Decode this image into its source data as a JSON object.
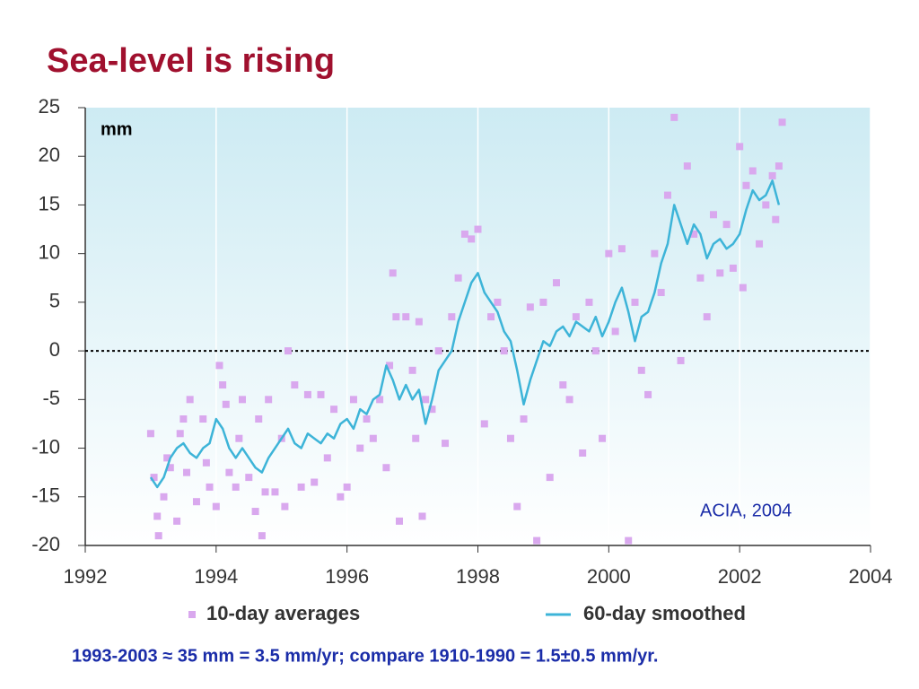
{
  "slide_title": "Sea-level is rising",
  "footnote": "1993-2003 ≈ 35 mm = 3.5 mm/yr;  compare 1910-1990 = 1.5±0.5 mm/yr.",
  "chart_data": {
    "type": "line",
    "ylabel": "mm",
    "annotation": "ACIA, 2004",
    "xlim": [
      1992,
      2004
    ],
    "xticks": [
      1992,
      1994,
      1996,
      1998,
      2000,
      2002,
      2004
    ],
    "ylim": [
      -20,
      25
    ],
    "yticks": [
      -20,
      -15,
      -10,
      -5,
      0,
      5,
      10,
      15,
      20,
      25
    ],
    "zero_line": 0,
    "series": [
      {
        "name": "10-day averages",
        "type": "scatter",
        "color": "#d9a8ee",
        "x": [
          1993.0,
          1993.05,
          1993.1,
          1993.12,
          1993.2,
          1993.25,
          1993.3,
          1993.4,
          1993.45,
          1993.5,
          1993.55,
          1993.6,
          1993.7,
          1993.8,
          1993.85,
          1993.9,
          1994.0,
          1994.05,
          1994.1,
          1994.15,
          1994.2,
          1994.3,
          1994.35,
          1994.4,
          1994.5,
          1994.6,
          1994.65,
          1994.7,
          1994.75,
          1994.8,
          1994.9,
          1995.0,
          1995.05,
          1995.1,
          1995.2,
          1995.3,
          1995.4,
          1995.5,
          1995.6,
          1995.7,
          1995.8,
          1995.9,
          1996.0,
          1996.1,
          1996.2,
          1996.3,
          1996.4,
          1996.5,
          1996.6,
          1996.65,
          1996.7,
          1996.75,
          1996.8,
          1996.9,
          1997.0,
          1997.05,
          1997.1,
          1997.15,
          1997.2,
          1997.3,
          1997.4,
          1997.5,
          1997.6,
          1997.7,
          1997.8,
          1997.9,
          1998.0,
          1998.1,
          1998.2,
          1998.3,
          1998.4,
          1998.5,
          1998.6,
          1998.7,
          1998.8,
          1998.9,
          1999.0,
          1999.1,
          1999.2,
          1999.3,
          1999.4,
          1999.5,
          1999.6,
          1999.7,
          1999.8,
          1999.9,
          2000.0,
          2000.1,
          2000.2,
          2000.3,
          2000.4,
          2000.5,
          2000.6,
          2000.7,
          2000.8,
          2000.9,
          2001.0,
          2001.1,
          2001.2,
          2001.3,
          2001.4,
          2001.5,
          2001.6,
          2001.7,
          2001.8,
          2001.9,
          2002.0,
          2002.05,
          2002.1,
          2002.2,
          2002.3,
          2002.4,
          2002.5,
          2002.55,
          2002.6,
          2002.65
        ],
        "values": [
          -8.5,
          -13,
          -17,
          -19,
          -15,
          -11,
          -12,
          -17.5,
          -8.5,
          -7,
          -12.5,
          -5,
          -15.5,
          -7,
          -11.5,
          -14,
          -16,
          -1.5,
          -3.5,
          -5.5,
          -12.5,
          -14,
          -9,
          -5,
          -13,
          -16.5,
          -7,
          -19,
          -14.5,
          -5,
          -14.5,
          -9,
          -16,
          0,
          -3.5,
          -14,
          -4.5,
          -13.5,
          -4.5,
          -11,
          -6,
          -15,
          -14,
          -5,
          -10,
          -7,
          -9,
          -5,
          -12,
          -1.5,
          8,
          3.5,
          -17.5,
          3.5,
          -2,
          -9,
          3,
          -17,
          -5,
          -6,
          0,
          -9.5,
          3.5,
          7.5,
          12,
          11.5,
          12.5,
          -7.5,
          3.5,
          5,
          0,
          -9,
          -16,
          -7,
          4.5,
          -19.5,
          5,
          -13,
          7,
          -3.5,
          -5,
          3.5,
          -10.5,
          5,
          0,
          -9,
          10,
          2,
          10.5,
          -19.5,
          5,
          -2,
          -4.5,
          10,
          6,
          16,
          24,
          -1,
          19,
          12,
          7.5,
          3.5,
          14,
          8,
          13,
          8.5,
          21,
          6.5,
          17,
          18.5,
          11,
          15,
          18,
          13.5,
          19,
          23.5
        ]
      },
      {
        "name": "60-day smoothed",
        "type": "line",
        "color": "#3db4d8",
        "x": [
          1993.0,
          1993.1,
          1993.2,
          1993.3,
          1993.4,
          1993.5,
          1993.6,
          1993.7,
          1993.8,
          1993.9,
          1994.0,
          1994.1,
          1994.2,
          1994.3,
          1994.4,
          1994.5,
          1994.6,
          1994.7,
          1994.8,
          1994.9,
          1995.0,
          1995.1,
          1995.2,
          1995.3,
          1995.4,
          1995.5,
          1995.6,
          1995.7,
          1995.8,
          1995.9,
          1996.0,
          1996.1,
          1996.2,
          1996.3,
          1996.4,
          1996.5,
          1996.6,
          1996.7,
          1996.8,
          1996.9,
          1997.0,
          1997.1,
          1997.2,
          1997.3,
          1997.4,
          1997.5,
          1997.6,
          1997.7,
          1997.8,
          1997.9,
          1998.0,
          1998.1,
          1998.2,
          1998.3,
          1998.4,
          1998.5,
          1998.6,
          1998.7,
          1998.8,
          1998.9,
          1999.0,
          1999.1,
          1999.2,
          1999.3,
          1999.4,
          1999.5,
          1999.6,
          1999.7,
          1999.8,
          1999.9,
          2000.0,
          2000.1,
          2000.2,
          2000.3,
          2000.4,
          2000.5,
          2000.6,
          2000.7,
          2000.8,
          2000.9,
          2001.0,
          2001.1,
          2001.2,
          2001.3,
          2001.4,
          2001.5,
          2001.6,
          2001.7,
          2001.8,
          2001.9,
          2002.0,
          2002.1,
          2002.2,
          2002.3,
          2002.4,
          2002.5,
          2002.6
        ],
        "values": [
          -13,
          -14,
          -13,
          -11,
          -10,
          -9.5,
          -10.5,
          -11,
          -10,
          -9.5,
          -7,
          -8,
          -10,
          -11,
          -10,
          -11,
          -12,
          -12.5,
          -11,
          -10,
          -9,
          -8,
          -9.5,
          -10,
          -8.5,
          -9,
          -9.5,
          -8.5,
          -9,
          -7.5,
          -7,
          -8,
          -6,
          -6.5,
          -5,
          -4.5,
          -1.5,
          -3,
          -5,
          -3.5,
          -5,
          -4,
          -7.5,
          -5,
          -2,
          -1,
          0,
          3,
          5,
          7,
          8,
          6,
          5,
          4,
          2,
          1,
          -2,
          -5.5,
          -3,
          -1,
          1,
          0.5,
          2,
          2.5,
          1.5,
          3,
          2.5,
          2,
          3.5,
          1.5,
          3,
          5,
          6.5,
          4,
          1,
          3.5,
          4,
          6,
          9,
          11,
          15,
          13,
          11,
          13,
          12,
          9.5,
          11,
          11.5,
          10.5,
          11,
          12,
          14.5,
          16.5,
          15.5,
          16,
          17.5,
          15
        ]
      }
    ]
  }
}
